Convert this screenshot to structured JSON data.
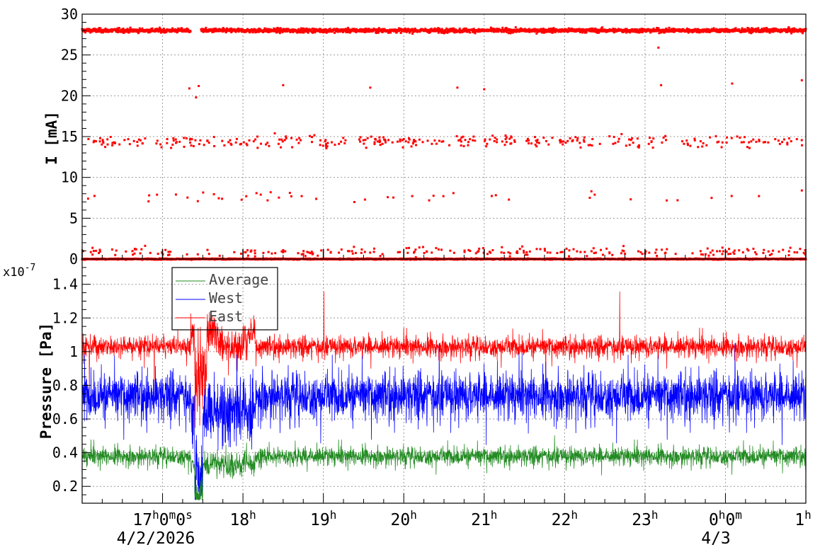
{
  "chart_data": [
    {
      "type": "scatter",
      "ylabel": "I [mA]",
      "ylim": [
        0,
        30
      ],
      "yticks": [
        "0",
        "5",
        "10",
        "15",
        "20",
        "25",
        "30"
      ],
      "yticks_values": [
        0,
        5,
        10,
        15,
        20,
        25,
        30
      ],
      "grid": true,
      "x_range": [
        "4/2/2026 16:00",
        "4/3/2026 01:00"
      ],
      "series": [
        {
          "color": "#ff0000",
          "bands": [
            {
              "level": 28.0,
              "spread": 0.35,
              "density": "continuous"
            },
            {
              "level": 14.4,
              "spread": 0.5,
              "density": "sparse"
            },
            {
              "level": 0.0,
              "spread": 0.1,
              "density": "continuous"
            },
            {
              "level": 0.9,
              "spread": 0.4,
              "density": "sparse"
            }
          ],
          "isolated_points": [
            {
              "x": "16:50",
              "y": 7.8
            },
            {
              "x": "17:10",
              "y": 7.9
            },
            {
              "x": "17:20",
              "y": 20.9
            },
            {
              "x": "17:25",
              "y": 19.8
            },
            {
              "x": "17:27",
              "y": 21.2
            },
            {
              "x": "18:30",
              "y": 21.3
            },
            {
              "x": "18:35",
              "y": 8.1
            },
            {
              "x": "19:35",
              "y": 21.0
            },
            {
              "x": "20:40",
              "y": 21.0
            },
            {
              "x": "21:00",
              "y": 20.8
            },
            {
              "x": "23:10",
              "y": 25.9
            },
            {
              "x": "23:12",
              "y": 21.3
            },
            {
              "x": "0:05",
              "y": 21.5
            },
            {
              "x": "0:57",
              "y": 21.9
            },
            {
              "x": "22:20",
              "y": 8.3
            },
            {
              "x": "0:57",
              "y": 8.4
            }
          ]
        }
      ]
    },
    {
      "type": "line",
      "ylabel": "Pressure [Pa]",
      "y_exponent": "x10",
      "y_exponent_power": "-7",
      "ylim": [
        0.1,
        1.55
      ],
      "yticks": [
        "0.2",
        "0.4",
        "0.6",
        "0.8",
        "1",
        "1.2",
        "1.4"
      ],
      "yticks_values": [
        0.2,
        0.4,
        0.6,
        0.8,
        1.0,
        1.2,
        1.4
      ],
      "grid": true,
      "x": [
        "16:00",
        "17:00",
        "18:00",
        "19:00",
        "20:00",
        "21:00",
        "22:00",
        "23:00",
        "0:00",
        "1:00"
      ],
      "xtick_labels": [
        {
          "main": "17",
          "sup": "h",
          "rest": "0",
          "sup2": "m",
          "rest2": "0",
          "sup3": "s"
        },
        {
          "main": "18",
          "sup": "h"
        },
        {
          "main": "19",
          "sup": "h"
        },
        {
          "main": "20",
          "sup": "h"
        },
        {
          "main": "21",
          "sup": "h"
        },
        {
          "main": "22",
          "sup": "h"
        },
        {
          "main": "23",
          "sup": "h"
        },
        {
          "main": "0",
          "sup": "h",
          "rest": "0",
          "sup2": "m"
        },
        {
          "main": "1",
          "sup": "h"
        }
      ],
      "date_labels": [
        "4/2/2026",
        "4/3"
      ],
      "legend_position": "top-left",
      "series": [
        {
          "name": "Average",
          "color": "#228b22",
          "mean": 0.38,
          "noise": 0.035
        },
        {
          "name": "West",
          "color": "#0000ff",
          "mean": 0.74,
          "noise": 0.09
        },
        {
          "name": "East",
          "color": "#ff0000",
          "mean": 1.03,
          "noise": 0.04
        }
      ]
    }
  ]
}
